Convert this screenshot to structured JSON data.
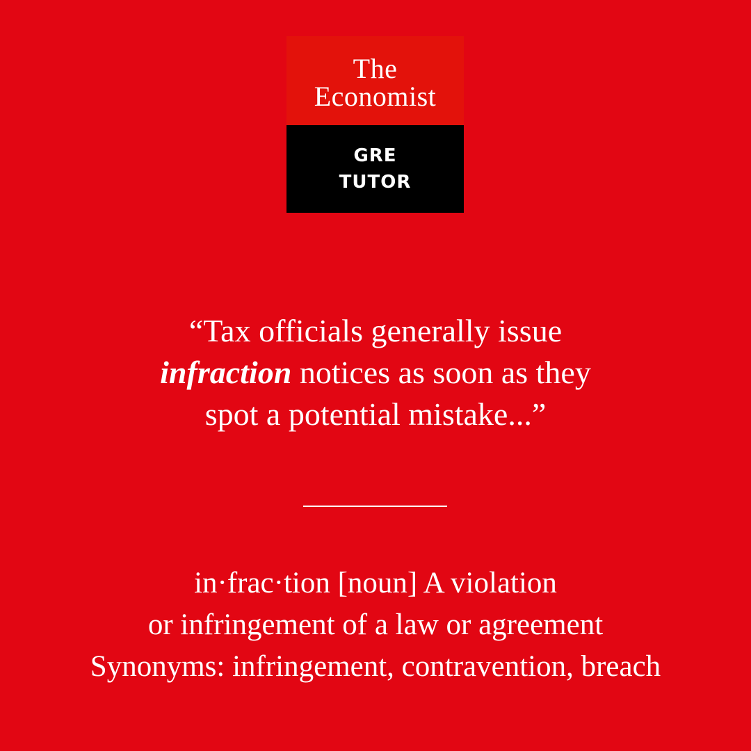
{
  "brand": {
    "line1": "The",
    "line2": "Economist",
    "sub_line1": "GRE",
    "sub_line2": "TUTOR"
  },
  "quote": {
    "line1": "“Tax officials generally issue",
    "highlight_word": "infraction",
    "line2_rest": " notices as soon as they",
    "line3": "spot a potential mistake...”"
  },
  "definition": {
    "line1": "in·frac·tion [noun] A violation",
    "line2": "or infringement of a law or agreement",
    "line3": "Synonyms: infringement, contravention, breach"
  },
  "colors": {
    "background": "#e20613",
    "logo_red": "#e3120b",
    "logo_black": "#000000",
    "text": "#ffffff"
  }
}
